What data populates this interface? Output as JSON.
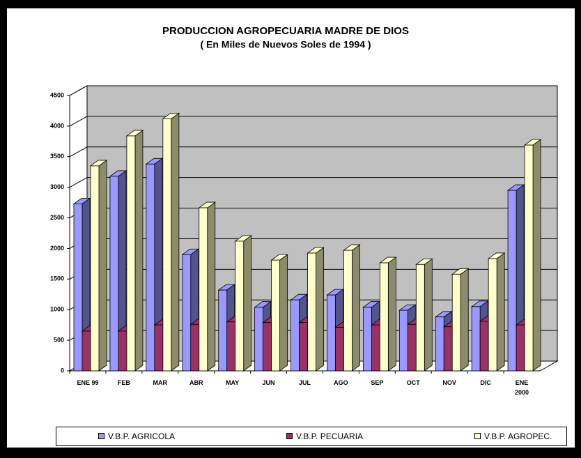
{
  "chart_data": {
    "type": "bar3d",
    "title": "PRODUCCION AGROPECUARIA MADRE DE DIOS",
    "subtitle": "( En Miles de Nuevos Soles de 1994 )",
    "categories": [
      "ENE 99",
      "FEB",
      "MAR",
      "ABR",
      "MAY",
      "JUN",
      "JUL",
      "AGO",
      "SEP",
      "OCT",
      "NOV",
      "DIC",
      "ENE\n2000"
    ],
    "series": [
      {
        "name": "V.B.P. AGRICOLA",
        "color": "#9999ff",
        "values": [
          2730,
          3180,
          3380,
          1900,
          1320,
          1040,
          1160,
          1240,
          1040,
          990,
          880,
          1050,
          2950
        ]
      },
      {
        "name": "V.B.P. PECUARIA",
        "color": "#993366",
        "values": [
          650,
          650,
          750,
          760,
          800,
          790,
          790,
          710,
          750,
          760,
          720,
          810,
          750
        ]
      },
      {
        "name": "V.B.P. AGROPEC.",
        "color": "#ffffcc",
        "values": [
          3350,
          3840,
          4120,
          2665,
          2120,
          1810,
          1925,
          1970,
          1765,
          1740,
          1580,
          1835,
          3690
        ]
      }
    ],
    "ylim": [
      0,
      4500
    ],
    "yticks": [
      0,
      500,
      1000,
      1500,
      2000,
      2500,
      3000,
      3500,
      4000,
      4500
    ],
    "grid": true,
    "legend": "bottom"
  }
}
